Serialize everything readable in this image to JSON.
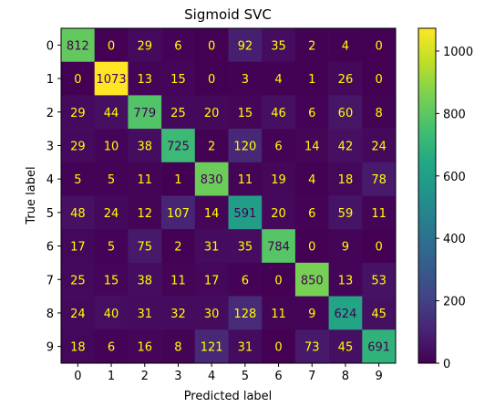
{
  "chart_data": {
    "type": "heatmap",
    "title": "Sigmoid SVC",
    "xlabel": "Predicted label",
    "ylabel": "True label",
    "x_categories": [
      "0",
      "1",
      "2",
      "3",
      "4",
      "5",
      "6",
      "7",
      "8",
      "9"
    ],
    "y_categories": [
      "0",
      "1",
      "2",
      "3",
      "4",
      "5",
      "6",
      "7",
      "8",
      "9"
    ],
    "values": [
      [
        812,
        0,
        29,
        6,
        0,
        92,
        35,
        2,
        4,
        0
      ],
      [
        0,
        1073,
        13,
        15,
        0,
        3,
        4,
        1,
        26,
        0
      ],
      [
        29,
        44,
        779,
        25,
        20,
        15,
        46,
        6,
        60,
        8
      ],
      [
        29,
        10,
        38,
        725,
        2,
        120,
        6,
        14,
        42,
        24
      ],
      [
        5,
        5,
        11,
        1,
        830,
        11,
        19,
        4,
        18,
        78
      ],
      [
        48,
        24,
        12,
        107,
        14,
        591,
        20,
        6,
        59,
        11
      ],
      [
        17,
        5,
        75,
        2,
        31,
        35,
        784,
        0,
        9,
        0
      ],
      [
        25,
        15,
        38,
        11,
        17,
        6,
        0,
        850,
        13,
        53
      ],
      [
        24,
        40,
        31,
        32,
        30,
        128,
        11,
        9,
        624,
        45
      ],
      [
        18,
        6,
        16,
        8,
        121,
        31,
        0,
        73,
        45,
        691
      ]
    ],
    "colormap": "viridis",
    "colorbar": {
      "range": [
        0,
        1073
      ],
      "ticks": [
        0,
        200,
        400,
        600,
        800,
        1000
      ]
    },
    "grid": false
  },
  "colors": {
    "text_on_dark": "#ffff00",
    "text_on_light": "#440154",
    "axis": "#000000"
  }
}
